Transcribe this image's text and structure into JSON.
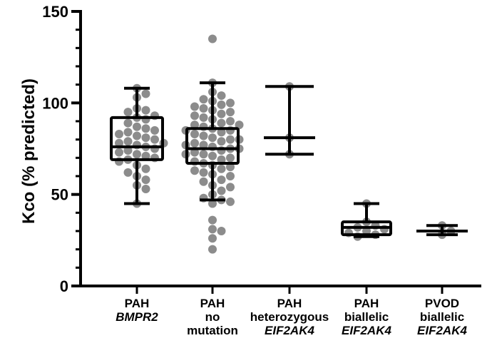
{
  "chart_data": {
    "type": "box",
    "ylabel": "Kco (% predicted)",
    "ylim": [
      0,
      150
    ],
    "yticks": [
      0,
      50,
      100,
      150
    ],
    "grid": false,
    "colors": {
      "points": "#8c8c8c",
      "lines": "#000000"
    },
    "categories": [
      {
        "lines": [
          {
            "text": "PAH",
            "italic": false
          },
          {
            "text": "BMPR2",
            "italic": true
          }
        ]
      },
      {
        "lines": [
          {
            "text": "PAH",
            "italic": false
          },
          {
            "text": "no",
            "italic": false
          },
          {
            "text": "mutation",
            "italic": false
          }
        ]
      },
      {
        "lines": [
          {
            "text": "PAH",
            "italic": false
          },
          {
            "text": "heterozygous",
            "italic": false
          },
          {
            "text": "EIF2AK4",
            "italic": true
          }
        ]
      },
      {
        "lines": [
          {
            "text": "PAH",
            "italic": false
          },
          {
            "text": "biallelic",
            "italic": false
          },
          {
            "text": "EIF2AK4",
            "italic": true
          }
        ]
      },
      {
        "lines": [
          {
            "text": "PVOD",
            "italic": false
          },
          {
            "text": "biallelic",
            "italic": false
          },
          {
            "text": "EIF2AK4",
            "italic": true
          }
        ]
      }
    ],
    "groups": [
      {
        "whisker_low": 45,
        "q1": 69,
        "median": 76,
        "q3": 92,
        "whisker_high": 108,
        "box": true,
        "points": [
          108,
          105,
          103,
          97,
          96,
          95,
          93,
          92,
          91,
          89,
          87,
          86,
          85,
          84,
          83,
          82,
          81,
          80,
          79,
          78,
          78,
          77,
          76,
          75,
          74,
          73,
          72,
          71,
          70,
          69,
          68,
          66,
          64,
          62,
          60,
          58,
          55,
          53,
          45
        ]
      },
      {
        "whisker_low": 47,
        "q1": 67,
        "median": 75,
        "q3": 86,
        "whisker_high": 111,
        "box": true,
        "points": [
          135,
          111,
          106,
          104,
          102,
          101,
          100,
          99,
          98,
          97,
          96,
          95,
          94,
          93,
          92,
          91,
          90,
          89,
          88,
          88,
          87,
          86,
          85,
          85,
          84,
          83,
          82,
          81,
          80,
          80,
          79,
          78,
          77,
          77,
          76,
          75,
          75,
          74,
          73,
          72,
          72,
          71,
          70,
          69,
          68,
          67,
          66,
          65,
          64,
          63,
          62,
          61,
          60,
          58,
          57,
          55,
          54,
          52,
          50,
          48,
          47,
          46,
          45,
          36,
          31,
          30,
          26,
          20
        ]
      },
      {
        "whisker_low": 72,
        "median": 81,
        "whisker_high": 109,
        "box": false,
        "points": [
          109,
          81,
          72
        ]
      },
      {
        "whisker_low": 27,
        "q1": 28,
        "median": 32,
        "q3": 35,
        "whisker_high": 45,
        "box": true,
        "points": [
          45,
          35,
          33,
          32,
          31,
          30,
          29,
          28,
          27
        ]
      },
      {
        "whisker_low": 28,
        "median": 30,
        "whisker_high": 33,
        "box": false,
        "points": [
          33,
          30,
          28
        ]
      }
    ]
  }
}
